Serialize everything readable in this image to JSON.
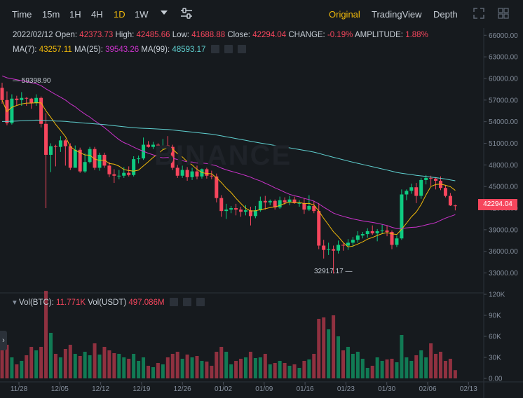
{
  "toolbar": {
    "intervals": [
      "Time",
      "15m",
      "1H",
      "4H",
      "1D",
      "1W"
    ],
    "active_interval": "1D",
    "views": [
      "Original",
      "TradingView",
      "Depth"
    ],
    "active_view": "Original"
  },
  "legend": {
    "date": "2022/02/12",
    "open_label": "Open:",
    "open": "42373.73",
    "high_label": "High:",
    "high": "42485.66",
    "low_label": "Low:",
    "low": "41688.88",
    "close_label": "Close:",
    "close": "42294.04",
    "change_label": "CHANGE:",
    "change": "-0.19%",
    "amplitude_label": "AMPLITUDE:",
    "amplitude": "1.88%",
    "ma7_label": "MA(7):",
    "ma7": "43257.11",
    "ma25_label": "MA(25):",
    "ma25": "39543.26",
    "ma99_label": "MA(99):",
    "ma99": "48593.17"
  },
  "volume_legend": {
    "btc_label": "Vol(BTC):",
    "btc": "11.771K",
    "usdt_label": "Vol(USDT)",
    "usdt": "497.086M"
  },
  "watermark": "BINANCE",
  "markers": {
    "high": "59398.90",
    "low": "32917.17",
    "last_price": "42294.04"
  },
  "colors": {
    "up": "#0ecb81",
    "down": "#f6465d",
    "accent": "#f0b90b",
    "ma7": "#f0b90b",
    "ma25": "#cc33cc",
    "ma99": "#5fd0d0"
  },
  "chart_data": {
    "type": "candlestick",
    "price_axis_ticks": [
      "66000.00",
      "63000.00",
      "60000.00",
      "57000.00",
      "54000.00",
      "51000.00",
      "48000.00",
      "45000.00",
      "42000.00",
      "39000.00",
      "36000.00",
      "33000.00"
    ],
    "volume_axis_ticks": [
      "120K",
      "90K",
      "60K",
      "30K",
      "0.00"
    ],
    "date_ticks": [
      "11/28",
      "12/05",
      "12/12",
      "12/19",
      "12/26",
      "01/02",
      "01/09",
      "01/16",
      "01/23",
      "01/30",
      "02/06",
      "02/13"
    ],
    "ylim": [
      31500,
      67000
    ],
    "volume_ylim": [
      0,
      120000
    ],
    "candles": [
      {
        "o": 58700,
        "h": 59398.9,
        "l": 56500,
        "c": 57000,
        "v": 62000
      },
      {
        "o": 57000,
        "h": 58200,
        "l": 53500,
        "c": 53800,
        "v": 48000
      },
      {
        "o": 53800,
        "h": 57800,
        "l": 53600,
        "c": 57200,
        "v": 30000
      },
      {
        "o": 57200,
        "h": 57600,
        "l": 56300,
        "c": 57000,
        "v": 20000
      },
      {
        "o": 57000,
        "h": 58100,
        "l": 56200,
        "c": 57300,
        "v": 25000
      },
      {
        "o": 57300,
        "h": 57400,
        "l": 56200,
        "c": 57200,
        "v": 33000
      },
      {
        "o": 57200,
        "h": 57300,
        "l": 55800,
        "c": 56600,
        "v": 45000
      },
      {
        "o": 56600,
        "h": 57800,
        "l": 56200,
        "c": 57300,
        "v": 40000
      },
      {
        "o": 57300,
        "h": 57500,
        "l": 53200,
        "c": 53700,
        "v": 45000
      },
      {
        "o": 53700,
        "h": 55200,
        "l": 42000,
        "c": 49400,
        "v": 125000
      },
      {
        "o": 49400,
        "h": 51000,
        "l": 47000,
        "c": 50600,
        "v": 65000
      },
      {
        "o": 50600,
        "h": 50800,
        "l": 47800,
        "c": 50500,
        "v": 35000
      },
      {
        "o": 50500,
        "h": 52000,
        "l": 49800,
        "c": 51400,
        "v": 30000
      },
      {
        "o": 51400,
        "h": 51600,
        "l": 47900,
        "c": 50600,
        "v": 42000
      },
      {
        "o": 50600,
        "h": 51000,
        "l": 47300,
        "c": 47600,
        "v": 48000
      },
      {
        "o": 47600,
        "h": 50700,
        "l": 47600,
        "c": 50100,
        "v": 35000
      },
      {
        "o": 50100,
        "h": 50400,
        "l": 46900,
        "c": 47100,
        "v": 32000
      },
      {
        "o": 47100,
        "h": 49600,
        "l": 46900,
        "c": 48400,
        "v": 38000
      },
      {
        "o": 48400,
        "h": 50500,
        "l": 48200,
        "c": 50200,
        "v": 33000
      },
      {
        "o": 50200,
        "h": 50500,
        "l": 47300,
        "c": 47600,
        "v": 50000
      },
      {
        "o": 47600,
        "h": 49700,
        "l": 47200,
        "c": 49400,
        "v": 34000
      },
      {
        "o": 49400,
        "h": 49700,
        "l": 47600,
        "c": 47900,
        "v": 45000
      },
      {
        "o": 47900,
        "h": 48400,
        "l": 46300,
        "c": 46700,
        "v": 40000
      },
      {
        "o": 46700,
        "h": 47400,
        "l": 45500,
        "c": 46500,
        "v": 36000
      },
      {
        "o": 46500,
        "h": 47300,
        "l": 46000,
        "c": 46500,
        "v": 35000
      },
      {
        "o": 46500,
        "h": 47700,
        "l": 46200,
        "c": 46900,
        "v": 30000
      },
      {
        "o": 46900,
        "h": 47800,
        "l": 46400,
        "c": 46600,
        "v": 28000
      },
      {
        "o": 46600,
        "h": 49200,
        "l": 46400,
        "c": 48800,
        "v": 35000
      },
      {
        "o": 48800,
        "h": 49300,
        "l": 48200,
        "c": 48900,
        "v": 25000
      },
      {
        "o": 48900,
        "h": 51800,
        "l": 48700,
        "c": 50800,
        "v": 30000
      },
      {
        "o": 50800,
        "h": 51300,
        "l": 50400,
        "c": 50500,
        "v": 18000
      },
      {
        "o": 50500,
        "h": 51200,
        "l": 50200,
        "c": 50800,
        "v": 16000
      },
      {
        "o": 50800,
        "h": 51000,
        "l": 49900,
        "c": 50300,
        "v": 22000
      },
      {
        "o": 50300,
        "h": 51600,
        "l": 50200,
        "c": 50700,
        "v": 20000
      },
      {
        "o": 50700,
        "h": 52000,
        "l": 50400,
        "c": 50500,
        "v": 30000
      },
      {
        "o": 50500,
        "h": 50800,
        "l": 47300,
        "c": 47600,
        "v": 35000
      },
      {
        "o": 47600,
        "h": 48000,
        "l": 46200,
        "c": 46500,
        "v": 38000
      },
      {
        "o": 46500,
        "h": 47900,
        "l": 46200,
        "c": 47300,
        "v": 28000
      },
      {
        "o": 47300,
        "h": 47700,
        "l": 45800,
        "c": 46300,
        "v": 34000
      },
      {
        "o": 46300,
        "h": 47600,
        "l": 45900,
        "c": 47100,
        "v": 30000
      },
      {
        "o": 47100,
        "h": 47900,
        "l": 46000,
        "c": 46400,
        "v": 32000
      },
      {
        "o": 46400,
        "h": 47500,
        "l": 46100,
        "c": 47400,
        "v": 25000
      },
      {
        "o": 47400,
        "h": 47600,
        "l": 46100,
        "c": 46500,
        "v": 24000
      },
      {
        "o": 46500,
        "h": 47200,
        "l": 46000,
        "c": 46400,
        "v": 18000
      },
      {
        "o": 46400,
        "h": 46800,
        "l": 42800,
        "c": 43400,
        "v": 38000
      },
      {
        "o": 43400,
        "h": 43800,
        "l": 40800,
        "c": 41600,
        "v": 45000
      },
      {
        "o": 41600,
        "h": 42600,
        "l": 40500,
        "c": 41800,
        "v": 38000
      },
      {
        "o": 41800,
        "h": 42300,
        "l": 41300,
        "c": 42000,
        "v": 20000
      },
      {
        "o": 42000,
        "h": 42600,
        "l": 41000,
        "c": 41800,
        "v": 25000
      },
      {
        "o": 41800,
        "h": 42200,
        "l": 40800,
        "c": 41500,
        "v": 28000
      },
      {
        "o": 41500,
        "h": 42400,
        "l": 41000,
        "c": 41700,
        "v": 30000
      },
      {
        "o": 41700,
        "h": 42200,
        "l": 39600,
        "c": 40900,
        "v": 38000
      },
      {
        "o": 40900,
        "h": 42300,
        "l": 40600,
        "c": 41700,
        "v": 29000
      },
      {
        "o": 41700,
        "h": 43600,
        "l": 41500,
        "c": 43000,
        "v": 30000
      },
      {
        "o": 43000,
        "h": 43700,
        "l": 41800,
        "c": 42800,
        "v": 35000
      },
      {
        "o": 42800,
        "h": 43200,
        "l": 42400,
        "c": 43000,
        "v": 20000
      },
      {
        "o": 43000,
        "h": 43200,
        "l": 41800,
        "c": 42100,
        "v": 22000
      },
      {
        "o": 42100,
        "h": 43600,
        "l": 41900,
        "c": 43100,
        "v": 25000
      },
      {
        "o": 43100,
        "h": 43500,
        "l": 42500,
        "c": 42800,
        "v": 22000
      },
      {
        "o": 42800,
        "h": 43700,
        "l": 42400,
        "c": 43200,
        "v": 18000
      },
      {
        "o": 43200,
        "h": 43600,
        "l": 42600,
        "c": 42700,
        "v": 20000
      },
      {
        "o": 42700,
        "h": 43100,
        "l": 42200,
        "c": 42700,
        "v": 15000
      },
      {
        "o": 42700,
        "h": 43400,
        "l": 41200,
        "c": 41800,
        "v": 25000
      },
      {
        "o": 41800,
        "h": 43800,
        "l": 41600,
        "c": 42300,
        "v": 27000
      },
      {
        "o": 42300,
        "h": 43000,
        "l": 41300,
        "c": 41600,
        "v": 35000
      },
      {
        "o": 41600,
        "h": 42700,
        "l": 36300,
        "c": 36800,
        "v": 85000
      },
      {
        "o": 36800,
        "h": 37600,
        "l": 35000,
        "c": 36200,
        "v": 87000
      },
      {
        "o": 36200,
        "h": 37200,
        "l": 35500,
        "c": 36300,
        "v": 70000
      },
      {
        "o": 36300,
        "h": 36800,
        "l": 32917.17,
        "c": 36100,
        "v": 90000
      },
      {
        "o": 36100,
        "h": 37500,
        "l": 35700,
        "c": 36900,
        "v": 60000
      },
      {
        "o": 36900,
        "h": 37100,
        "l": 36100,
        "c": 36800,
        "v": 40000
      },
      {
        "o": 36800,
        "h": 37700,
        "l": 36200,
        "c": 37200,
        "v": 45000
      },
      {
        "o": 37200,
        "h": 38000,
        "l": 36600,
        "c": 37600,
        "v": 35000
      },
      {
        "o": 37600,
        "h": 38800,
        "l": 37200,
        "c": 38200,
        "v": 38000
      },
      {
        "o": 38200,
        "h": 38700,
        "l": 37800,
        "c": 38400,
        "v": 28000
      },
      {
        "o": 38400,
        "h": 39200,
        "l": 37900,
        "c": 38800,
        "v": 15000
      },
      {
        "o": 38800,
        "h": 39600,
        "l": 38300,
        "c": 38500,
        "v": 18000
      },
      {
        "o": 38500,
        "h": 39100,
        "l": 37400,
        "c": 38800,
        "v": 30000
      },
      {
        "o": 38800,
        "h": 39700,
        "l": 38500,
        "c": 38900,
        "v": 25000
      },
      {
        "o": 38900,
        "h": 39600,
        "l": 38100,
        "c": 38700,
        "v": 27000
      },
      {
        "o": 38700,
        "h": 38900,
        "l": 36300,
        "c": 36900,
        "v": 28000
      },
      {
        "o": 36900,
        "h": 38200,
        "l": 36600,
        "c": 37800,
        "v": 23000
      },
      {
        "o": 37800,
        "h": 44600,
        "l": 37600,
        "c": 43900,
        "v": 62000
      },
      {
        "o": 43900,
        "h": 44600,
        "l": 43100,
        "c": 44400,
        "v": 30000
      },
      {
        "o": 44400,
        "h": 45400,
        "l": 44000,
        "c": 44900,
        "v": 25000
      },
      {
        "o": 44900,
        "h": 45500,
        "l": 42700,
        "c": 43700,
        "v": 33000
      },
      {
        "o": 43700,
        "h": 46200,
        "l": 43300,
        "c": 45900,
        "v": 40000
      },
      {
        "o": 45900,
        "h": 46600,
        "l": 45300,
        "c": 46200,
        "v": 30000
      },
      {
        "o": 46200,
        "h": 46500,
        "l": 45100,
        "c": 46100,
        "v": 50000
      },
      {
        "o": 46100,
        "h": 46300,
        "l": 44600,
        "c": 45800,
        "v": 35000
      },
      {
        "o": 45800,
        "h": 46400,
        "l": 44500,
        "c": 44800,
        "v": 38000
      },
      {
        "o": 44800,
        "h": 45200,
        "l": 43500,
        "c": 43700,
        "v": 25000
      },
      {
        "o": 43700,
        "h": 44100,
        "l": 42300,
        "c": 42373.73,
        "v": 28000
      },
      {
        "o": 42373.73,
        "h": 42485.66,
        "l": 41688.88,
        "c": 42294.04,
        "v": 11771
      }
    ]
  }
}
